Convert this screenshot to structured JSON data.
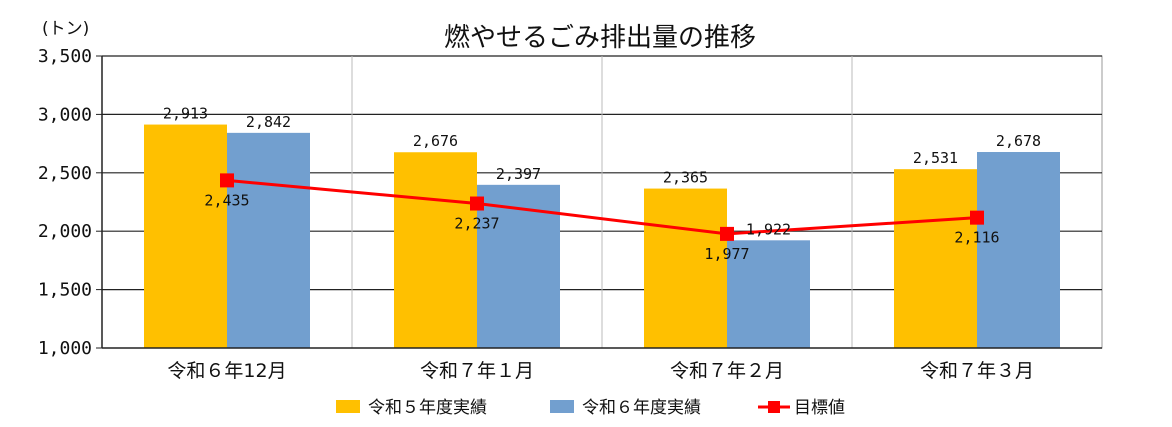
{
  "chart_data": {
    "type": "bar",
    "title": "燃やせるごみ排出量の推移",
    "unit_label": "(トン)",
    "categories": [
      "令和６年12月",
      "令和７年１月",
      "令和７年２月",
      "令和７年３月"
    ],
    "series": [
      {
        "name": "令和５年度実績",
        "type": "bar",
        "color": "#FFC000",
        "values": [
          2913,
          2676,
          2365,
          2531
        ],
        "labels": [
          "2,913",
          "2,676",
          "2,365",
          "2,531"
        ]
      },
      {
        "name": "令和６年度実績",
        "type": "bar",
        "color": "#729FCF",
        "values": [
          2842,
          2397,
          1922,
          2678
        ],
        "labels": [
          "2,842",
          "2,397",
          "1,922",
          "2,678"
        ]
      },
      {
        "name": "目標値",
        "type": "line",
        "color": "#FF0000",
        "values": [
          2435,
          2237,
          1977,
          2116
        ],
        "labels": [
          "2,435",
          "2,237",
          "1,977",
          "2,116"
        ]
      }
    ],
    "ylim": [
      1000,
      3500
    ],
    "yticks": [
      1000,
      1500,
      2000,
      2500,
      3000,
      3500
    ],
    "ytick_labels": [
      "1,000",
      "1,500",
      "2,000",
      "2,500",
      "3,000",
      "3,500"
    ],
    "legend_position": "bottom",
    "grid": true
  }
}
